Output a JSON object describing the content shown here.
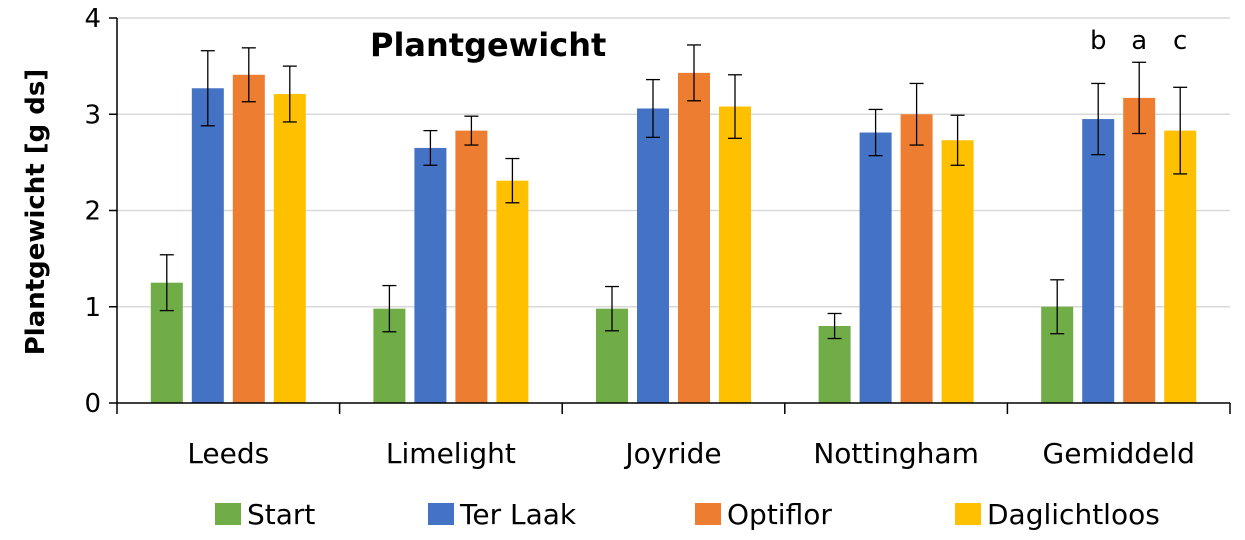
{
  "chart_data": {
    "type": "bar",
    "title": "Plantgewicht",
    "ylabel": "Plantgewicht [g ds]",
    "xlabel": "",
    "ylim": [
      0,
      4
    ],
    "yticks": [
      "0",
      "1",
      "2",
      "3",
      "4"
    ],
    "grid": true,
    "legend_position": "bottom",
    "categories": [
      "Leeds",
      "Limelight",
      "Joyride",
      "Nottingham",
      "Gemiddeld"
    ],
    "series": [
      {
        "name": "Start",
        "color": "#70AD47",
        "values": [
          1.25,
          0.98,
          0.98,
          0.8,
          1.0
        ],
        "errors": [
          0.29,
          0.24,
          0.23,
          0.13,
          0.28
        ]
      },
      {
        "name": "Ter Laak",
        "color": "#4472C4",
        "values": [
          3.27,
          2.65,
          3.06,
          2.81,
          2.95
        ],
        "errors": [
          0.39,
          0.18,
          0.3,
          0.24,
          0.37
        ]
      },
      {
        "name": "Optiflor",
        "color": "#ED7D31",
        "values": [
          3.41,
          2.83,
          3.43,
          3.0,
          3.17
        ],
        "errors": [
          0.28,
          0.15,
          0.29,
          0.32,
          0.37
        ]
      },
      {
        "name": "Daglichtloos",
        "color": "#FFC000",
        "values": [
          3.21,
          2.31,
          3.08,
          2.73,
          2.83
        ],
        "errors": [
          0.29,
          0.23,
          0.33,
          0.26,
          0.45
        ]
      }
    ],
    "annotations": [
      {
        "category": "Gemiddeld",
        "series": "Ter Laak",
        "text": "b"
      },
      {
        "category": "Gemiddeld",
        "series": "Optiflor",
        "text": "a"
      },
      {
        "category": "Gemiddeld",
        "series": "Daglichtloos",
        "text": "c"
      }
    ]
  }
}
